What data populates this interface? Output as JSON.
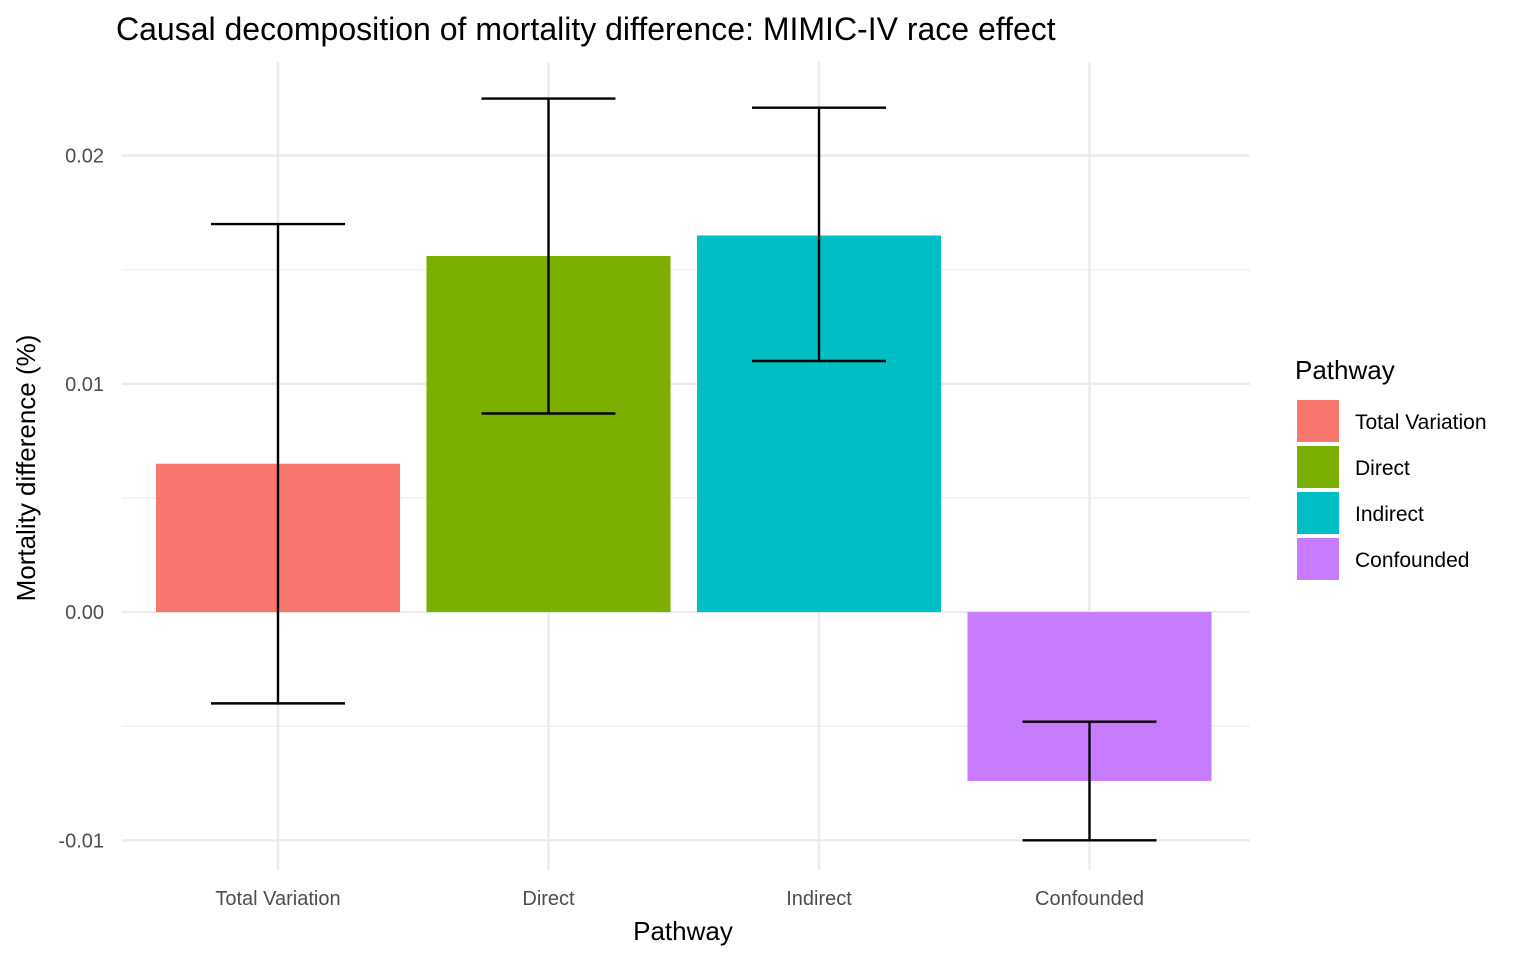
{
  "chart_data": {
    "type": "bar",
    "title": "Causal decomposition of mortality difference: MIMIC-IV race effect",
    "xlabel": "Pathway",
    "ylabel": "Mortality difference (%)",
    "categories": [
      "Total Variation",
      "Direct",
      "Indirect",
      "Confounded"
    ],
    "values": [
      0.0065,
      0.0156,
      0.0165,
      -0.0074
    ],
    "error_low": [
      -0.004,
      0.0087,
      0.011,
      -0.01
    ],
    "error_high": [
      0.017,
      0.0225,
      0.0221,
      -0.0048
    ],
    "colors": [
      "#F8766D",
      "#7CAE00",
      "#00BFC4",
      "#C77CFF"
    ],
    "ylim": [
      -0.0113,
      0.0241
    ],
    "yticks": [
      -0.01,
      0.0,
      0.01,
      0.02
    ],
    "ytick_labels": [
      "-0.01",
      "0.00",
      "0.01",
      "0.02"
    ],
    "grid": true,
    "legend": {
      "title": "Pathway",
      "position": "right",
      "entries": [
        "Total Variation",
        "Direct",
        "Indirect",
        "Confounded"
      ]
    }
  }
}
